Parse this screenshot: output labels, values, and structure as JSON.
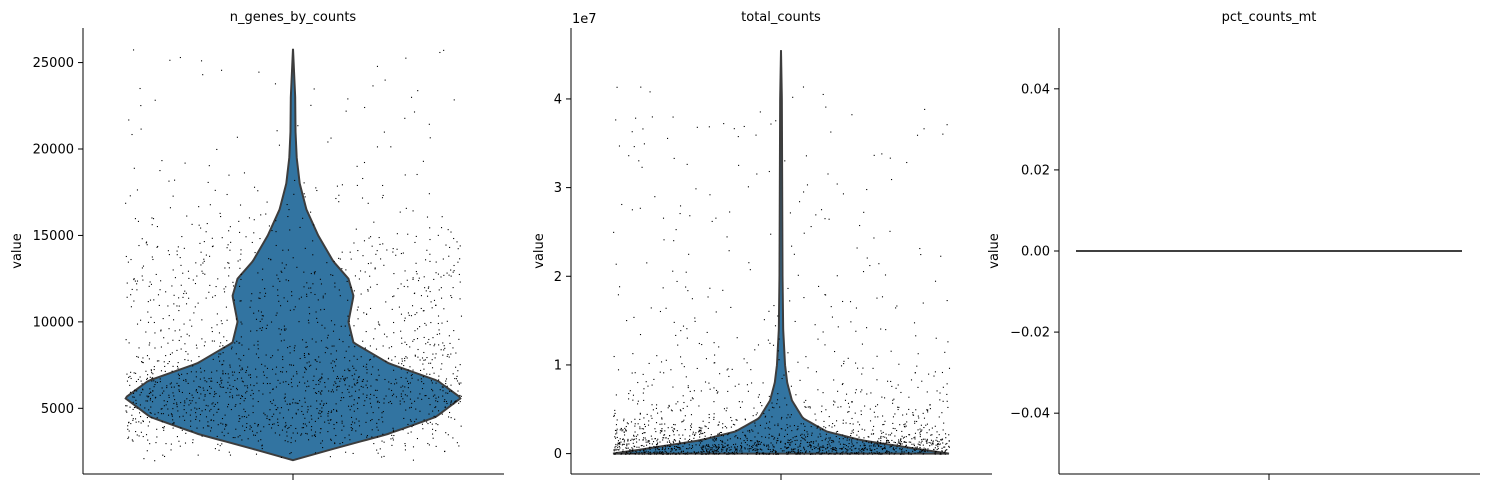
{
  "chart_data": [
    {
      "type": "violin",
      "title": "n_genes_by_counts",
      "ylabel": "value",
      "ylim": [
        1200,
        27000
      ],
      "yticks": [
        5000,
        10000,
        15000,
        20000,
        25000
      ],
      "ytick_labels": [
        "5000",
        "10000",
        "15000",
        "20000",
        "25000"
      ],
      "offset_label": "",
      "color": "#3274a1",
      "n_points": 1800,
      "data_range": [
        2000,
        25800
      ],
      "density_profile": [
        [
          2000,
          0.0
        ],
        [
          2600,
          0.22
        ],
        [
          3500,
          0.56
        ],
        [
          4500,
          0.85
        ],
        [
          5600,
          1.0
        ],
        [
          6600,
          0.86
        ],
        [
          7600,
          0.57
        ],
        [
          8800,
          0.36
        ],
        [
          10000,
          0.33
        ],
        [
          11500,
          0.36
        ],
        [
          12500,
          0.33
        ],
        [
          13500,
          0.24
        ],
        [
          15000,
          0.15
        ],
        [
          16500,
          0.08
        ],
        [
          18000,
          0.04
        ],
        [
          19500,
          0.022
        ],
        [
          21000,
          0.015
        ],
        [
          23000,
          0.013
        ],
        [
          25800,
          0.0
        ]
      ]
    },
    {
      "type": "violin",
      "title": "total_counts",
      "ylabel": "value",
      "ylim": [
        -2300000,
        48000000
      ],
      "yticks": [
        0,
        10000000,
        20000000,
        30000000,
        40000000
      ],
      "ytick_labels": [
        "0",
        "1",
        "2",
        "3",
        "4"
      ],
      "offset_label": "1e7",
      "color": "#3274a1",
      "n_points": 1800,
      "data_range": [
        0,
        45500000
      ],
      "density_profile": [
        [
          0,
          1.0
        ],
        [
          500000,
          0.82
        ],
        [
          1500000,
          0.48
        ],
        [
          2500000,
          0.27
        ],
        [
          4000000,
          0.13
        ],
        [
          6000000,
          0.065
        ],
        [
          8000000,
          0.037
        ],
        [
          10000000,
          0.024
        ],
        [
          14000000,
          0.013
        ],
        [
          20000000,
          0.009
        ],
        [
          30000000,
          0.007
        ],
        [
          40000000,
          0.005
        ],
        [
          45500000,
          0.0
        ]
      ]
    },
    {
      "type": "violin",
      "title": "pct_counts_mt",
      "ylabel": "value",
      "ylim": [
        -0.055,
        0.055
      ],
      "yticks": [
        -0.04,
        -0.02,
        0.0,
        0.02,
        0.04
      ],
      "ytick_labels": [
        "−0.04",
        "−0.02",
        "0.00",
        "0.02",
        "0.04"
      ],
      "offset_label": "",
      "color": "#3274a1",
      "n_points": 0,
      "constant_value": 0.0
    }
  ]
}
